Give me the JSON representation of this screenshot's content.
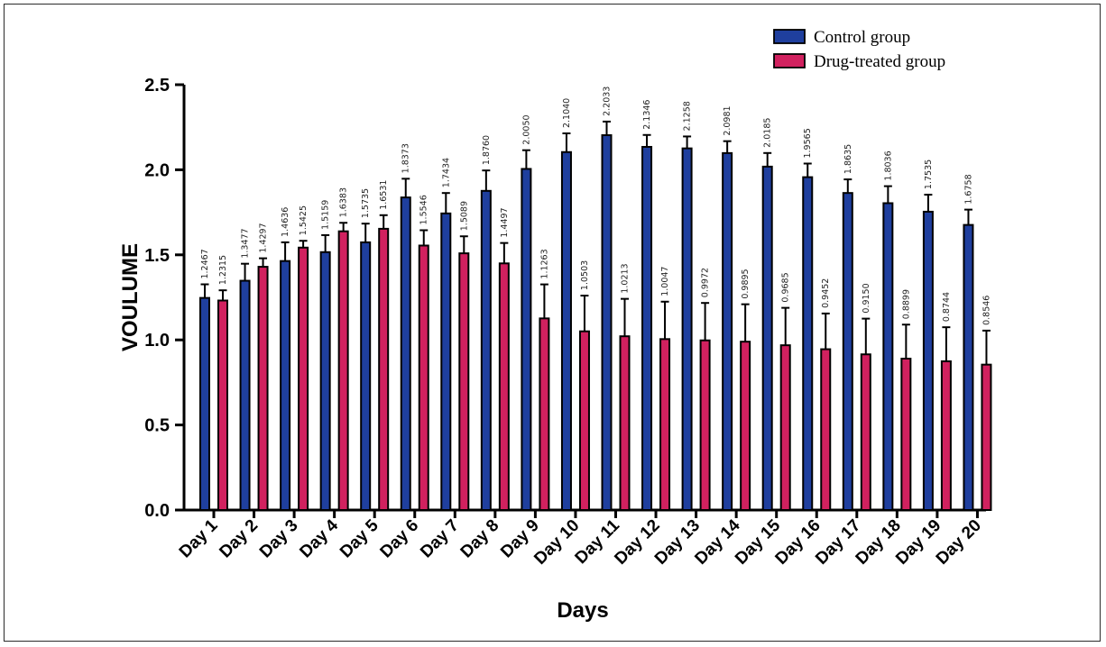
{
  "chart_data": {
    "type": "bar",
    "xlabel": "Days",
    "ylabel": "VOULUME",
    "ylim": [
      0,
      2.5
    ],
    "yticks": [
      0.0,
      0.5,
      1.0,
      1.5,
      2.0,
      2.5
    ],
    "ytick_labels": [
      "0.0",
      "0.5",
      "1.0",
      "1.5",
      "2.0",
      "2.5"
    ],
    "legend_position": "top-right",
    "error_bars": true,
    "categories": [
      "Day 1",
      "Day 2",
      "Day 3",
      "Day 4",
      "Day 5",
      "Day 6",
      "Day 7",
      "Day 8",
      "Day 9",
      "Day 10",
      "Day 11",
      "Day 12",
      "Day 13",
      "Day 14",
      "Day 15",
      "Day 16",
      "Day 17",
      "Day 18",
      "Day 19",
      "Day 20"
    ],
    "series": [
      {
        "name": "Control group",
        "color": "#1f3f9e",
        "values": [
          1.2467,
          1.3477,
          1.4636,
          1.5159,
          1.5735,
          1.8373,
          1.7434,
          1.876,
          2.005,
          2.104,
          2.2033,
          2.1346,
          2.1258,
          2.0981,
          2.0185,
          1.9565,
          1.8635,
          1.8036,
          1.7535,
          1.6758
        ],
        "value_labels": [
          "1.2467",
          "1.3477",
          "1.4636",
          "1.5159",
          "1.5735",
          "1.8373",
          "1.7434",
          "1.8760",
          "2.0050",
          "2.1040",
          "2.2033",
          "2.1346",
          "2.1258",
          "2.0981",
          "2.0185",
          "1.9565",
          "1.8635",
          "1.8036",
          "1.7535",
          "1.6758"
        ],
        "errors": [
          0.08,
          0.1,
          0.11,
          0.1,
          0.11,
          0.11,
          0.12,
          0.12,
          0.11,
          0.11,
          0.08,
          0.07,
          0.07,
          0.07,
          0.08,
          0.08,
          0.08,
          0.1,
          0.1,
          0.09
        ]
      },
      {
        "name": "Drug-treated group",
        "color": "#d1215f",
        "values": [
          1.2315,
          1.4297,
          1.5425,
          1.6383,
          1.6531,
          1.5546,
          1.5089,
          1.4497,
          1.1263,
          1.0503,
          1.0213,
          1.0047,
          0.9972,
          0.9895,
          0.9685,
          0.9452,
          0.915,
          0.8899,
          0.8744,
          0.8546
        ],
        "value_labels": [
          "1.2315",
          "1.4297",
          "1.5425",
          "1.6383",
          "1.6531",
          "1.5546",
          "1.5089",
          "1.4497",
          "1.1263",
          "1.0503",
          "1.0213",
          "1.0047",
          "0.9972",
          "0.9895",
          "0.9685",
          "0.9452",
          "0.9150",
          "0.8899",
          "0.8744",
          "0.8546"
        ],
        "errors": [
          0.06,
          0.05,
          0.04,
          0.05,
          0.08,
          0.09,
          0.1,
          0.12,
          0.2,
          0.21,
          0.22,
          0.22,
          0.22,
          0.22,
          0.22,
          0.21,
          0.21,
          0.2,
          0.2,
          0.2
        ]
      }
    ]
  }
}
